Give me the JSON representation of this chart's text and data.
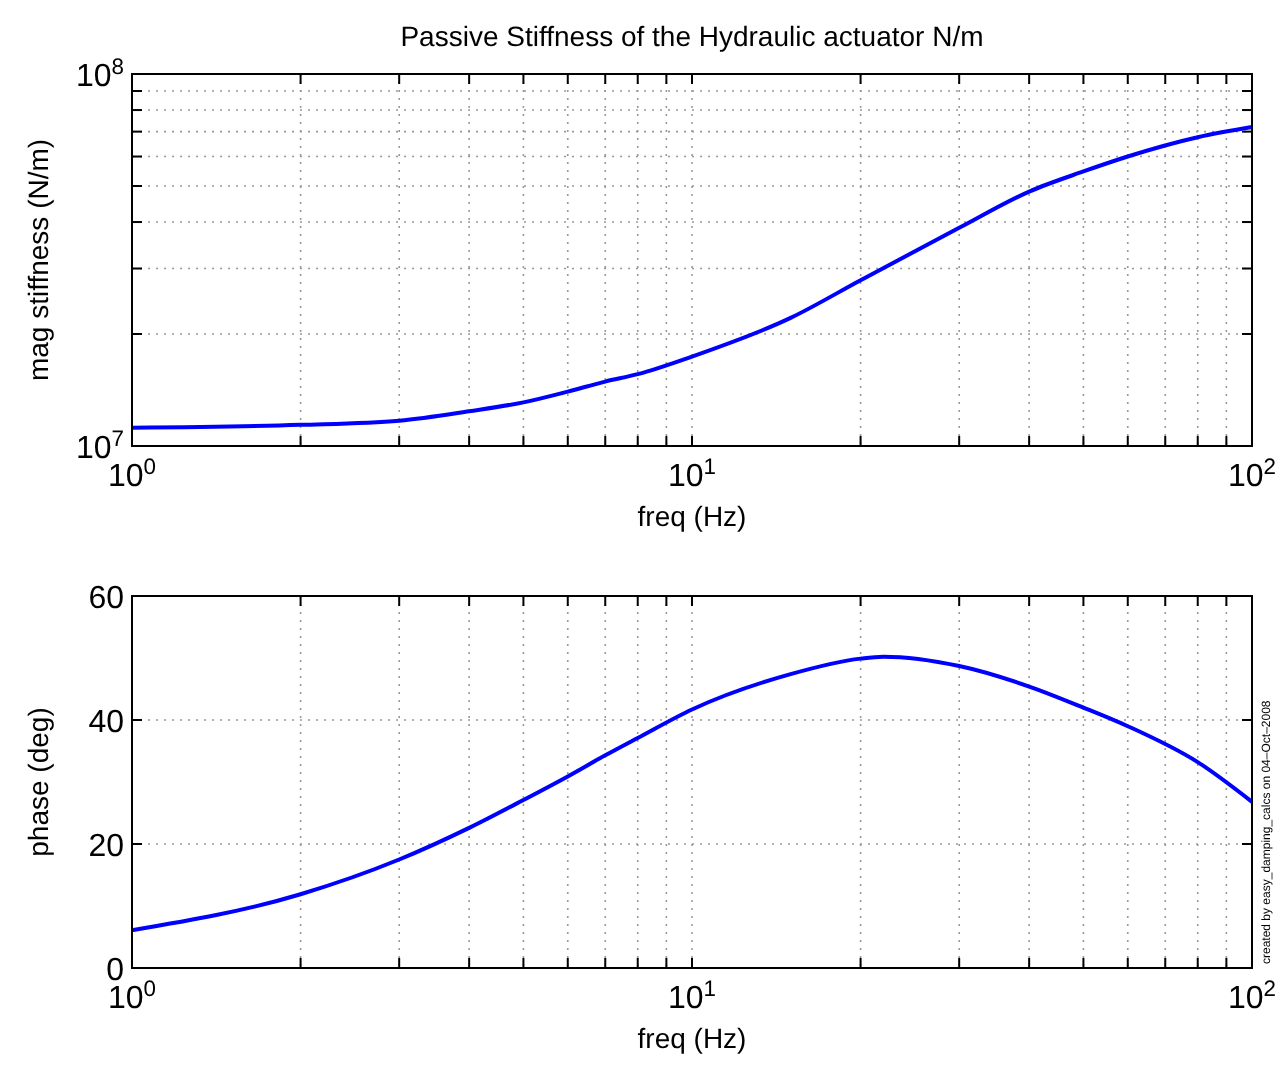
{
  "chart_data": [
    {
      "type": "line",
      "title": "Passive Stiffness of the Hydraulic actuator N/m",
      "xlabel": "freq (Hz)",
      "ylabel": "mag stiffness (N/m)",
      "log": "xy",
      "grid": true,
      "line_style": "solid",
      "x": [
        1,
        2,
        3,
        4,
        5,
        6,
        7,
        8,
        10,
        15,
        20,
        30,
        40,
        50,
        60,
        80,
        100
      ],
      "series": [
        {
          "color": "#0000ff",
          "values": [
            11200000,
            11400000,
            11700000,
            12400000,
            13100000,
            14000000,
            14900000,
            15600000,
            17400000,
            22100000,
            27900000,
            38600000,
            48300000,
            54700000,
            60000000,
            67600000,
            72000000
          ]
        }
      ],
      "xlim": [
        1,
        100
      ],
      "ylim": [
        10000000,
        100000000
      ],
      "xticks": [
        {
          "value": 1,
          "label": "10$^{0}$"
        },
        {
          "value": 2,
          "label": null
        },
        {
          "value": 3,
          "label": null
        },
        {
          "value": 4,
          "label": null
        },
        {
          "value": 5,
          "label": null
        },
        {
          "value": 6,
          "label": null
        },
        {
          "value": 7,
          "label": null
        },
        {
          "value": 8,
          "label": null
        },
        {
          "value": 9,
          "label": null
        },
        {
          "value": 10,
          "label": "10$^{1}$"
        },
        {
          "value": 20,
          "label": null
        },
        {
          "value": 30,
          "label": null
        },
        {
          "value": 40,
          "label": null
        },
        {
          "value": 50,
          "label": null
        },
        {
          "value": 60,
          "label": null
        },
        {
          "value": 70,
          "label": null
        },
        {
          "value": 80,
          "label": null
        },
        {
          "value": 90,
          "label": null
        },
        {
          "value": 100,
          "label": "10$^{2}$"
        }
      ],
      "yticks": [
        {
          "value": 10000000,
          "label": "10$^{7}$"
        },
        {
          "value": 20000000,
          "label": null
        },
        {
          "value": 30000000,
          "label": null
        },
        {
          "value": 40000000,
          "label": null
        },
        {
          "value": 50000000,
          "label": null
        },
        {
          "value": 60000000,
          "label": null
        },
        {
          "value": 70000000,
          "label": null
        },
        {
          "value": 80000000,
          "label": null
        },
        {
          "value": 90000000,
          "label": null
        },
        {
          "value": 100000000,
          "label": "10$^{8}$"
        }
      ]
    },
    {
      "type": "line",
      "xlabel": "freq (Hz)",
      "ylabel": "phase (deg)",
      "log": "x",
      "grid": true,
      "line_style": "solid",
      "x": [
        1,
        2,
        3,
        4,
        5,
        6,
        7,
        8,
        10,
        15,
        20,
        22,
        30,
        40,
        50,
        60,
        80,
        100
      ],
      "series": [
        {
          "color": "#0000ff",
          "values": [
            6.1,
            11.9,
            17.5,
            22.6,
            27.1,
            30.9,
            34.3,
            37.1,
            41.7,
            47.4,
            49.9,
            50.2,
            48.7,
            45.4,
            42.0,
            39.0,
            33.2,
            26.8
          ]
        }
      ],
      "xlim": [
        1,
        100
      ],
      "ylim": [
        0,
        60
      ],
      "xticks": [
        {
          "value": 1,
          "label": "10$^{0}$"
        },
        {
          "value": 2,
          "label": null
        },
        {
          "value": 3,
          "label": null
        },
        {
          "value": 4,
          "label": null
        },
        {
          "value": 5,
          "label": null
        },
        {
          "value": 6,
          "label": null
        },
        {
          "value": 7,
          "label": null
        },
        {
          "value": 8,
          "label": null
        },
        {
          "value": 9,
          "label": null
        },
        {
          "value": 10,
          "label": "10$^{1}$"
        },
        {
          "value": 20,
          "label": null
        },
        {
          "value": 30,
          "label": null
        },
        {
          "value": 40,
          "label": null
        },
        {
          "value": 50,
          "label": null
        },
        {
          "value": 60,
          "label": null
        },
        {
          "value": 70,
          "label": null
        },
        {
          "value": 80,
          "label": null
        },
        {
          "value": 90,
          "label": null
        },
        {
          "value": 100,
          "label": "10$^{2}$"
        }
      ],
      "yticks": [
        0,
        20,
        40,
        60
      ],
      "annotations": [
        "created by easy_damping_calcs on 04–Oct–2008"
      ]
    }
  ]
}
